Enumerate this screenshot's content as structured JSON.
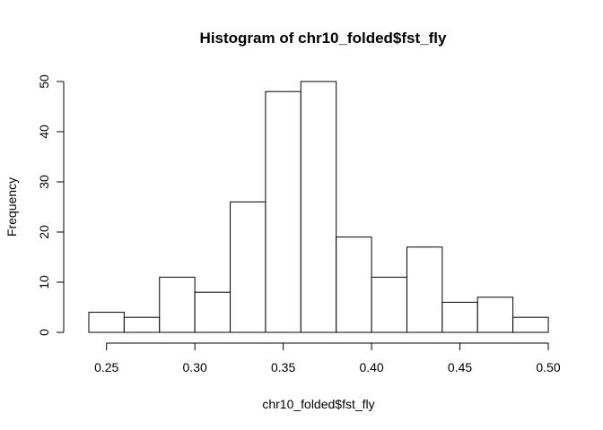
{
  "chart_data": {
    "type": "bar",
    "title": "Histogram of chr10_folded$fst_fly",
    "xlabel": "chr10_folded$fst_fly",
    "ylabel": "Frequency",
    "bin_edges": [
      0.24,
      0.26,
      0.28,
      0.3,
      0.32,
      0.34,
      0.36,
      0.38,
      0.4,
      0.42,
      0.44,
      0.46,
      0.48,
      0.5
    ],
    "values": [
      4,
      3,
      11,
      8,
      26,
      48,
      50,
      19,
      11,
      17,
      6,
      7,
      3
    ],
    "xlim": [
      0.24,
      0.5
    ],
    "ylim": [
      0,
      50
    ],
    "x_ticks": [
      "0.25",
      "0.30",
      "0.35",
      "0.40",
      "0.45",
      "0.50"
    ],
    "y_ticks": [
      "0",
      "10",
      "20",
      "30",
      "40",
      "50"
    ],
    "bar_fill": "#ffffff",
    "bar_stroke": "#000000",
    "grid": false
  }
}
